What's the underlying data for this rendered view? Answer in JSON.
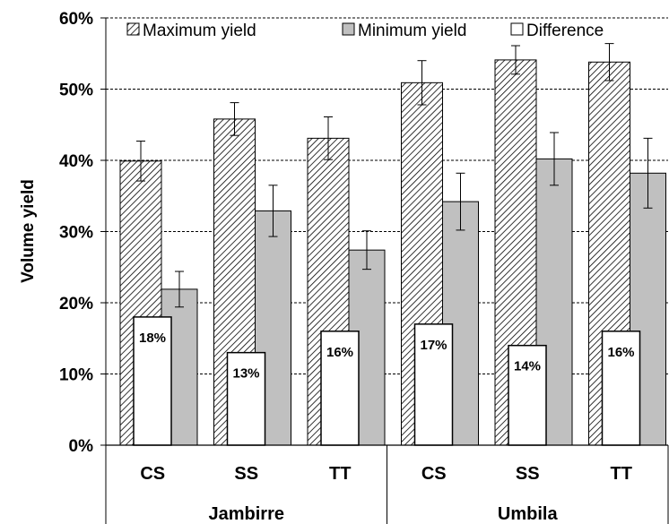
{
  "chart_data": {
    "type": "bar",
    "ylabel": "Volume yield",
    "ylim": [
      0,
      60
    ],
    "yticks": [
      "0%",
      "10%",
      "20%",
      "30%",
      "40%",
      "50%",
      "60%"
    ],
    "grid": "horizontal dashed",
    "legend_position": "top",
    "categories": [
      "CS",
      "SS",
      "TT",
      "CS",
      "SS",
      "TT"
    ],
    "groups": [
      {
        "label": "Jambirre",
        "categories": [
          0,
          1,
          2
        ]
      },
      {
        "label": "Umbila",
        "categories": [
          3,
          4,
          5
        ]
      }
    ],
    "series": [
      {
        "name": "Maximum yield",
        "pattern": "hatched",
        "color": "#ffffff",
        "values": [
          39.9,
          45.8,
          43.1,
          50.9,
          54.1,
          53.8
        ],
        "errors": [
          2.8,
          2.3,
          3.0,
          3.1,
          2.0,
          2.6
        ]
      },
      {
        "name": "Minimum yield",
        "pattern": "solid",
        "color": "#c0c0c0",
        "values": [
          21.9,
          32.9,
          27.4,
          34.2,
          40.2,
          38.2
        ],
        "errors": [
          2.5,
          3.6,
          2.7,
          4.0,
          3.7,
          4.9
        ]
      },
      {
        "name": "Difference",
        "pattern": "solid",
        "color": "#ffffff",
        "values": [
          18,
          13,
          16,
          17,
          14,
          16
        ],
        "data_labels": [
          "18%",
          "13%",
          "16%",
          "17%",
          "14%",
          "16%"
        ]
      }
    ]
  }
}
